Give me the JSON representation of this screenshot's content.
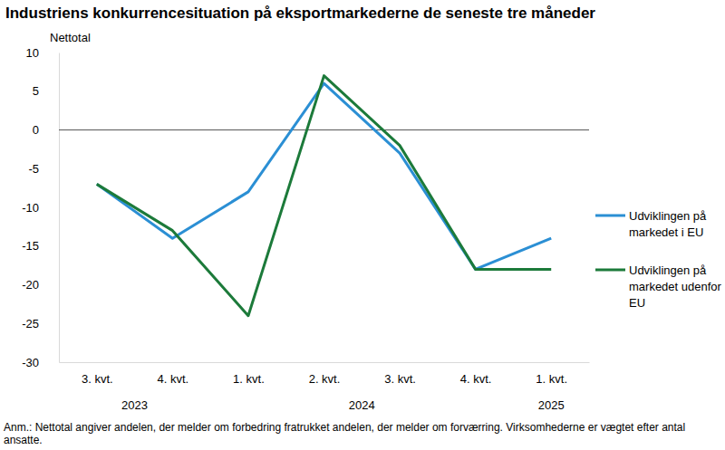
{
  "chart_data": {
    "type": "line",
    "title": "Industriens konkurrencesituation på eksportmarkederne de seneste tre måneder",
    "y_label": "Nettotal",
    "note": "Anm.: Nettotal angiver andelen, der melder om forbedring fratrukket andelen, der melder om forværring. Virksomhederne er vægtet efter antal ansatte.",
    "categories": [
      "3. kvt.",
      "4. kvt.",
      "1. kvt.",
      "2. kvt.",
      "3. kvt.",
      "4. kvt.",
      "1. kvt."
    ],
    "years": [
      "2023",
      "2023",
      "2024",
      "2024",
      "2024",
      "2024",
      "2025"
    ],
    "series": [
      {
        "name": "Udviklingen på markedet i EU",
        "color": "#2b8fd4",
        "values": [
          -7,
          -14,
          -8,
          6,
          -3,
          -18,
          -14
        ]
      },
      {
        "name": "Udviklingen på markedet udenfor EU",
        "color": "#1c7a3a",
        "values": [
          -7,
          -13,
          -24,
          7,
          -2,
          -18,
          -18
        ]
      }
    ],
    "ylim": [
      -30,
      10
    ],
    "yticks": [
      -30,
      -25,
      -20,
      -15,
      -10,
      -5,
      0,
      5,
      10
    ],
    "reference_lines": [
      0
    ],
    "legend": "right",
    "grid": false
  }
}
